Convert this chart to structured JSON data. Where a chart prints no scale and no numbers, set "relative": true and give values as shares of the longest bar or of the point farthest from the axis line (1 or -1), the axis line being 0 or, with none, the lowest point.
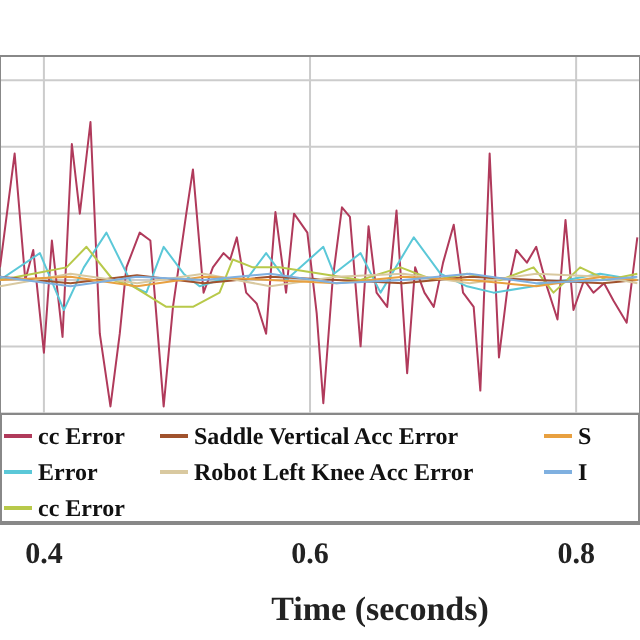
{
  "chart_data": {
    "type": "line",
    "xlabel": "Time (seconds)",
    "relative": true,
    "xlim": [
      0.367,
      0.848
    ],
    "xticks": [
      0.4,
      0.6,
      0.8
    ],
    "grid": true,
    "legend": "bottom",
    "line_style": "solid",
    "series": [
      {
        "name": "cc Error",
        "color": "#b03a5b",
        "x": [
          0.367,
          0.378,
          0.386,
          0.392,
          0.4,
          0.406,
          0.414,
          0.421,
          0.427,
          0.435,
          0.442,
          0.45,
          0.457,
          0.462,
          0.472,
          0.48,
          0.49,
          0.497,
          0.507,
          0.512,
          0.52,
          0.527,
          0.535,
          0.54,
          0.545,
          0.552,
          0.56,
          0.567,
          0.574,
          0.582,
          0.588,
          0.598,
          0.605,
          0.61,
          0.617,
          0.624,
          0.63,
          0.638,
          0.644,
          0.65,
          0.658,
          0.665,
          0.673,
          0.679,
          0.686,
          0.693,
          0.7,
          0.708,
          0.715,
          0.723,
          0.728,
          0.735,
          0.742,
          0.748,
          0.755,
          0.763,
          0.77,
          0.778,
          0.786,
          0.792,
          0.798,
          0.806,
          0.813,
          0.821,
          0.828,
          0.838,
          0.846
        ],
        "values": [
          0.08,
          0.8,
          0,
          0.19,
          -0.46,
          0.25,
          -0.36,
          0.86,
          0.42,
          1,
          -0.34,
          -0.8,
          -0.34,
          0.08,
          0.3,
          0.25,
          -0.8,
          -0.17,
          0.42,
          0.7,
          -0.08,
          0.08,
          0.17,
          0.13,
          0.27,
          -0.08,
          -0.15,
          -0.34,
          0.43,
          -0.08,
          0.42,
          0.3,
          -0.21,
          -0.78,
          0,
          0.46,
          0.4,
          -0.42,
          0.34,
          -0.08,
          -0.17,
          0.44,
          -0.59,
          0.08,
          -0.08,
          -0.17,
          0.11,
          0.35,
          -0.08,
          -0.17,
          -0.7,
          0.8,
          -0.49,
          -0.08,
          0.19,
          0.11,
          0.21,
          -0.04,
          -0.25,
          0.38,
          -0.19,
          0,
          -0.08,
          -0.02,
          -0.13,
          -0.27,
          0.27
        ]
      },
      {
        "name": "Error",
        "color": "#5bc8d8",
        "x": [
          0.367,
          0.397,
          0.415,
          0.43,
          0.447,
          0.467,
          0.477,
          0.49,
          0.505,
          0.517,
          0.532,
          0.552,
          0.567,
          0.582,
          0.61,
          0.618,
          0.638,
          0.653,
          0.678,
          0.698,
          0.718,
          0.738,
          0.768,
          0.793,
          0.818,
          0.846
        ],
        "values": [
          0,
          0.17,
          -0.19,
          0.08,
          0.3,
          -0.04,
          -0.08,
          0.21,
          0.04,
          -0.04,
          0,
          0,
          0.17,
          0,
          0.21,
          0.04,
          0.17,
          -0.08,
          0.27,
          0.04,
          -0.04,
          -0.08,
          -0.04,
          0,
          0.04,
          0
        ]
      },
      {
        "name": "cc Error",
        "color": "#b8c94a",
        "x": [
          0.367,
          0.392,
          0.417,
          0.432,
          0.452,
          0.467,
          0.492,
          0.512,
          0.532,
          0.542,
          0.557,
          0.577,
          0.608,
          0.638,
          0.668,
          0.693,
          0.718,
          0.743,
          0.768,
          0.783,
          0.803,
          0.823,
          0.846
        ],
        "values": [
          0,
          0.04,
          0.08,
          0.21,
          0,
          -0.04,
          -0.17,
          -0.17,
          -0.08,
          0.13,
          0.08,
          0.08,
          0.04,
          0,
          0.08,
          0,
          0.04,
          0,
          0.08,
          -0.08,
          0.08,
          0,
          0.04
        ]
      },
      {
        "name": "Saddle Vertical Acc Error",
        "color": "#a0522d",
        "x": [
          0.367,
          0.42,
          0.47,
          0.52,
          0.57,
          0.62,
          0.67,
          0.72,
          0.77,
          0.82,
          0.846
        ],
        "values": [
          0.02,
          -0.02,
          0.03,
          -0.02,
          0.02,
          0,
          -0.02,
          0.02,
          0,
          -0.02,
          0
        ]
      },
      {
        "name": "Robot Left Knee Acc Error",
        "color": "#d9c9a0",
        "x": [
          0.367,
          0.42,
          0.47,
          0.52,
          0.57,
          0.62,
          0.67,
          0.72,
          0.77,
          0.82,
          0.846
        ],
        "values": [
          -0.04,
          0.04,
          -0.02,
          0.04,
          -0.04,
          0.02,
          0.04,
          -0.02,
          0.04,
          0.02,
          -0.02
        ]
      },
      {
        "name": "S",
        "color": "#e8a040",
        "x": [
          0.367,
          0.42,
          0.47,
          0.52,
          0.57,
          0.62,
          0.67,
          0.72,
          0.77,
          0.82,
          0.846
        ],
        "values": [
          0,
          0.02,
          -0.04,
          0.02,
          0,
          -0.02,
          0.02,
          0,
          -0.04,
          0.02,
          0
        ]
      },
      {
        "name": "I",
        "color": "#7fb0e0",
        "x": [
          0.367,
          0.42,
          0.47,
          0.52,
          0.57,
          0.62,
          0.67,
          0.72,
          0.77,
          0.82,
          0.846
        ],
        "values": [
          0.02,
          -0.04,
          0.02,
          0,
          0.04,
          -0.02,
          0,
          0.04,
          -0.02,
          0,
          0.02
        ]
      }
    ]
  }
}
